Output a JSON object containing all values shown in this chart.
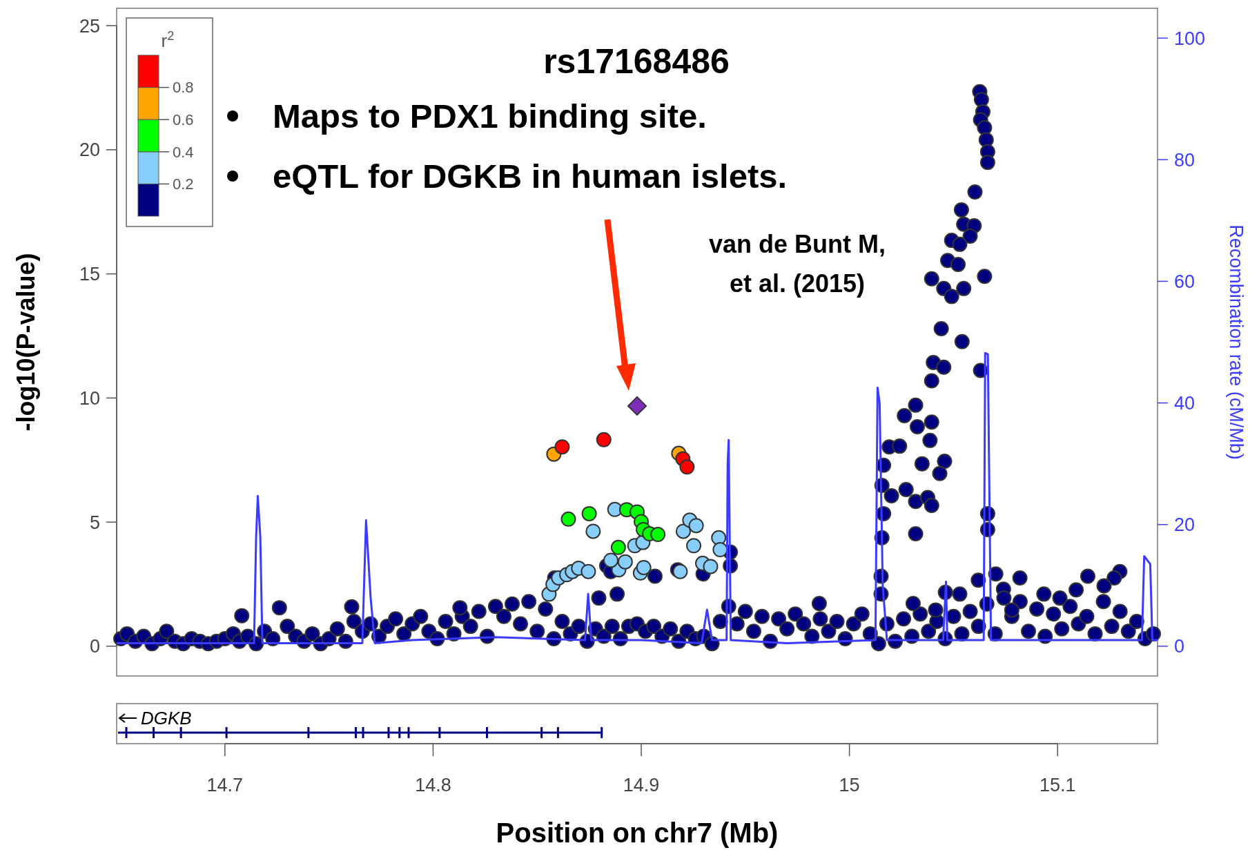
{
  "chart_data": {
    "type": "scatter",
    "title": "rs17168486",
    "xlabel": "Position on chr7 (Mb)",
    "ylabel": "-log10(P-value)",
    "y2label": "Recombination rate (cM/Mb)",
    "legend_title": "r$^{2}$",
    "annotations": [
      "Maps to PDX1 binding site.",
      "eQTL for DGKB in human islets.",
      "van de Bunt M, et al. (2015)",
      "DGKB",
      "0.8",
      "0.6",
      "0.4",
      "0.2"
    ],
    "xlim": [
      14.648,
      15.148
    ],
    "xticks": [
      14.7,
      14.8,
      14.9,
      15,
      15.1
    ],
    "ylim": [
      -1.2,
      25.7
    ],
    "yticks": [
      0,
      5,
      10,
      15,
      20,
      25
    ],
    "y2lim": [
      -4.9,
      104.9
    ],
    "y2ticks": [
      0,
      20,
      40,
      60,
      80,
      100
    ],
    "series": [
      {
        "type": "line",
        "axis": "y2",
        "color": "#3b3bff",
        "x": [
          14.648,
          14.714,
          14.715,
          14.7158,
          14.717,
          14.718,
          14.766,
          14.7678,
          14.77,
          14.772,
          14.79,
          14.83,
          14.873,
          14.8745,
          14.876,
          14.9,
          14.929,
          14.9316,
          14.934,
          14.941,
          14.9415,
          14.942,
          14.943,
          14.97,
          15.0125,
          15.0135,
          15.0145,
          15.016,
          15.018,
          15.045,
          15.0464,
          15.047,
          15.0645,
          15.0652,
          15.0665,
          15.068,
          15.1405,
          15.1416,
          15.1445,
          15.1455,
          15.148
        ],
        "values": [
          0.5,
          0.5,
          18,
          24.7,
          18,
          0.5,
          0.5,
          20.7,
          8,
          0.5,
          1,
          1.5,
          1,
          8.6,
          1,
          1,
          0.5,
          6,
          1,
          1,
          30,
          33.9,
          1,
          0.5,
          1,
          42.5,
          40,
          10,
          1,
          1,
          10.6,
          1,
          1,
          48.2,
          48,
          1,
          1,
          14.8,
          13.5,
          1,
          1
        ]
      },
      {
        "color": "#000080",
        "marker": "circle",
        "x": [
          14.65,
          14.653,
          14.657,
          14.661,
          14.665,
          14.669,
          14.672,
          14.676,
          14.68,
          14.684,
          14.688,
          14.692,
          14.696,
          14.7,
          14.704,
          14.707,
          14.711,
          14.715,
          14.719,
          14.723,
          14.73,
          14.734,
          14.738,
          14.742,
          14.746,
          14.75,
          14.754,
          14.758,
          14.762,
          14.766,
          14.77,
          14.774,
          14.778,
          14.782,
          14.786,
          14.79,
          14.794,
          14.798,
          14.802,
          14.806,
          14.81,
          14.814,
          14.818,
          14.822,
          14.826,
          14.83,
          14.834,
          14.838,
          14.842,
          14.846,
          14.85,
          14.854,
          14.858,
          14.862,
          14.866,
          14.87,
          14.874,
          14.878,
          14.882,
          14.886,
          14.89,
          14.894,
          14.898,
          14.902,
          14.906,
          14.91,
          14.914,
          14.918,
          14.922,
          14.926,
          14.93,
          14.934,
          14.938,
          14.942,
          14.946,
          14.95,
          14.954,
          14.958,
          14.962,
          14.966,
          14.97,
          14.974,
          14.978,
          14.982,
          14.986,
          14.99,
          14.994,
          14.998,
          15.002,
          15.006,
          15.01,
          15.014,
          15.018,
          15.022,
          15.026,
          15.03,
          15.034,
          15.038,
          15.042,
          15.046,
          15.05,
          15.054,
          15.058,
          15.062,
          15.066,
          15.07,
          15.074,
          15.078,
          15.082,
          15.086,
          15.09,
          15.094,
          15.098,
          15.102,
          15.106,
          15.11,
          15.114,
          15.118,
          15.122,
          15.126,
          15.13,
          15.134,
          15.138,
          15.142,
          15.146,
          14.7262,
          14.7081,
          14.7609,
          14.8129,
          14.9855,
          15.0306,
          15.0461,
          15.053,
          15.0619,
          15.0703,
          15.0819,
          15.0934,
          15.1145,
          15.1299,
          15.1272,
          15.1223,
          15.1089,
          15.1011,
          15.0742,
          15.078,
          15.0414,
          14.8584,
          14.8796,
          14.8884,
          14.8834,
          14.9066,
          14.9175,
          14.9297,
          14.8854,
          14.9428,
          14.9428,
          15.0626,
          15.0634,
          15.0641,
          15.063,
          15.0649,
          15.0657,
          15.0664,
          15.0664,
          15.0603,
          15.0538,
          15.0549,
          15.0599,
          15.058,
          15.0491,
          15.053,
          15.0472,
          15.0522,
          15.0395,
          15.0649,
          15.0453,
          15.0491,
          15.0549,
          15.0441,
          15.0541,
          15.063,
          15.0403,
          15.0453,
          15.0395,
          15.0264,
          15.0318,
          15.0326,
          15.0395,
          15.0387,
          15.0191,
          15.0164,
          15.0241,
          15.0349,
          15.0457,
          15.0434,
          15.0156,
          15.0202,
          15.0272,
          15.0318,
          15.0376,
          15.0395,
          15.0318,
          15.0164,
          15.0156,
          15.0152,
          15.0152,
          15.0664,
          15.0664
        ],
        "values": [
          0.3,
          0.5,
          0.2,
          0.4,
          0.1,
          0.3,
          0.6,
          0.2,
          0.1,
          0.3,
          0.2,
          0.1,
          0.2,
          0.3,
          0.5,
          0.2,
          0.4,
          0.1,
          0.6,
          0.3,
          0.8,
          0.4,
          0.2,
          0.5,
          0.1,
          0.3,
          0.7,
          0.2,
          1.0,
          0.6,
          0.9,
          0.4,
          0.8,
          1.1,
          0.5,
          0.9,
          1.2,
          0.6,
          0.3,
          1.0,
          0.5,
          1.2,
          0.8,
          1.4,
          0.4,
          1.6,
          1.2,
          1.7,
          0.9,
          1.8,
          0.6,
          1.5,
          0.3,
          1.0,
          0.5,
          0.8,
          0.2,
          0.7,
          0.4,
          0.8,
          0.3,
          0.8,
          0.9,
          0.6,
          0.8,
          0.4,
          0.7,
          0.2,
          0.6,
          0.3,
          0.4,
          0.1,
          1.0,
          1.6,
          0.9,
          1.4,
          0.6,
          1.2,
          0.2,
          1.1,
          0.7,
          1.3,
          0.9,
          0.4,
          1.1,
          0.6,
          1.0,
          0.3,
          0.9,
          1.3,
          0.5,
          0.1,
          0.9,
          0.2,
          1.1,
          0.4,
          1.3,
          0.6,
          1.0,
          0.3,
          1.2,
          0.5,
          1.4,
          0.8,
          1.7,
          0.5,
          2.3,
          1.2,
          1.8,
          0.6,
          1.5,
          0.4,
          1.3,
          0.7,
          1.6,
          0.9,
          1.2,
          0.5,
          1.8,
          0.8,
          1.4,
          0.6,
          1.0,
          0.3,
          0.5,
          1.55,
          1.23,
          1.59,
          1.55,
          1.72,
          1.72,
          2.17,
          2.1,
          2.66,
          2.91,
          2.75,
          2.1,
          2.82,
          3.01,
          2.75,
          2.43,
          2.27,
          1.94,
          1.94,
          1.46,
          1.46,
          2.75,
          1.94,
          2.1,
          3.24,
          2.82,
          3.08,
          2.91,
          3.01,
          3.79,
          3.24,
          22.34,
          22.02,
          21.53,
          21.21,
          20.89,
          20.4,
          19.92,
          19.49,
          18.3,
          17.58,
          17.0,
          16.94,
          16.52,
          16.35,
          16.19,
          15.54,
          15.38,
          14.8,
          14.9,
          14.41,
          14.09,
          14.41,
          12.79,
          12.27,
          11.11,
          11.43,
          11.24,
          10.69,
          9.29,
          9.71,
          8.84,
          9.03,
          8.29,
          8.03,
          7.29,
          8.06,
          7.35,
          7.45,
          6.96,
          6.48,
          6.06,
          6.31,
          5.83,
          5.99,
          5.67,
          4.53,
          5.34,
          4.37,
          2.82,
          2.1,
          5.34,
          4.7
        ]
      },
      {
        "color": "#87cefa",
        "marker": "circle",
        "x": [
          14.8557,
          14.8576,
          14.8603,
          14.8642,
          14.8669,
          14.8699,
          14.8746,
          14.8769,
          14.8873,
          14.8892,
          14.8923,
          14.8969,
          14.8996,
          14.9012,
          14.8854,
          14.9202,
          14.9233,
          14.9264,
          14.9252,
          14.9295,
          14.9333,
          14.9372,
          14.9379,
          14.9187,
          14.9008
        ],
        "values": [
          2.1,
          2.49,
          2.75,
          2.88,
          3.01,
          3.14,
          3.01,
          4.63,
          5.51,
          3.08,
          3.4,
          4.05,
          2.95,
          3.17,
          3.46,
          4.63,
          5.08,
          4.86,
          4.05,
          3.34,
          3.21,
          4.37,
          3.89,
          3.01,
          4.18
        ]
      },
      {
        "color": "#00ff00",
        "marker": "circle",
        "x": [
          14.865,
          14.875,
          14.889,
          14.893,
          14.898,
          14.9,
          14.901,
          14.904,
          14.908
        ],
        "values": [
          5.12,
          5.34,
          3.98,
          5.5,
          5.41,
          5.02,
          4.7,
          4.53,
          4.5
        ]
      },
      {
        "color": "#ffa500",
        "marker": "circle",
        "x": [
          14.858,
          14.918
        ],
        "values": [
          7.74,
          7.77
        ]
      },
      {
        "color": "#ff0000",
        "marker": "circle",
        "x": [
          14.862,
          14.882,
          14.92,
          14.922
        ],
        "values": [
          8.03,
          8.32,
          7.55,
          7.22
        ]
      },
      {
        "color": "#7d2eb8",
        "marker": "diamond",
        "x": [
          14.898
        ],
        "values": [
          9.68
        ]
      }
    ]
  }
}
